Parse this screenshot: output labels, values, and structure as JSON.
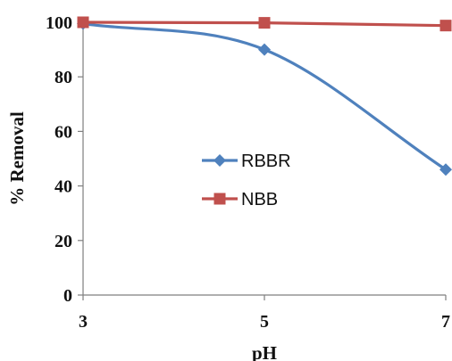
{
  "chart_data": {
    "type": "line",
    "xlabel": "pH",
    "ylabel": "% Removal",
    "x": [
      3,
      5,
      7
    ],
    "x_tick_labels": [
      "3",
      "5",
      "7"
    ],
    "ylim": [
      0,
      100
    ],
    "y_tick_labels": [
      "0",
      "20",
      "40",
      "60",
      "80",
      "100"
    ],
    "grid": false,
    "legend_position": "center",
    "series": [
      {
        "name": "RBBR",
        "values": [
          99.5,
          90,
          46
        ],
        "color": "#4F81BD",
        "marker": "diamond",
        "smooth": true
      },
      {
        "name": "NBB",
        "values": [
          100,
          99.8,
          98.8
        ],
        "color": "#C0504D",
        "marker": "square",
        "smooth": false
      }
    ]
  }
}
